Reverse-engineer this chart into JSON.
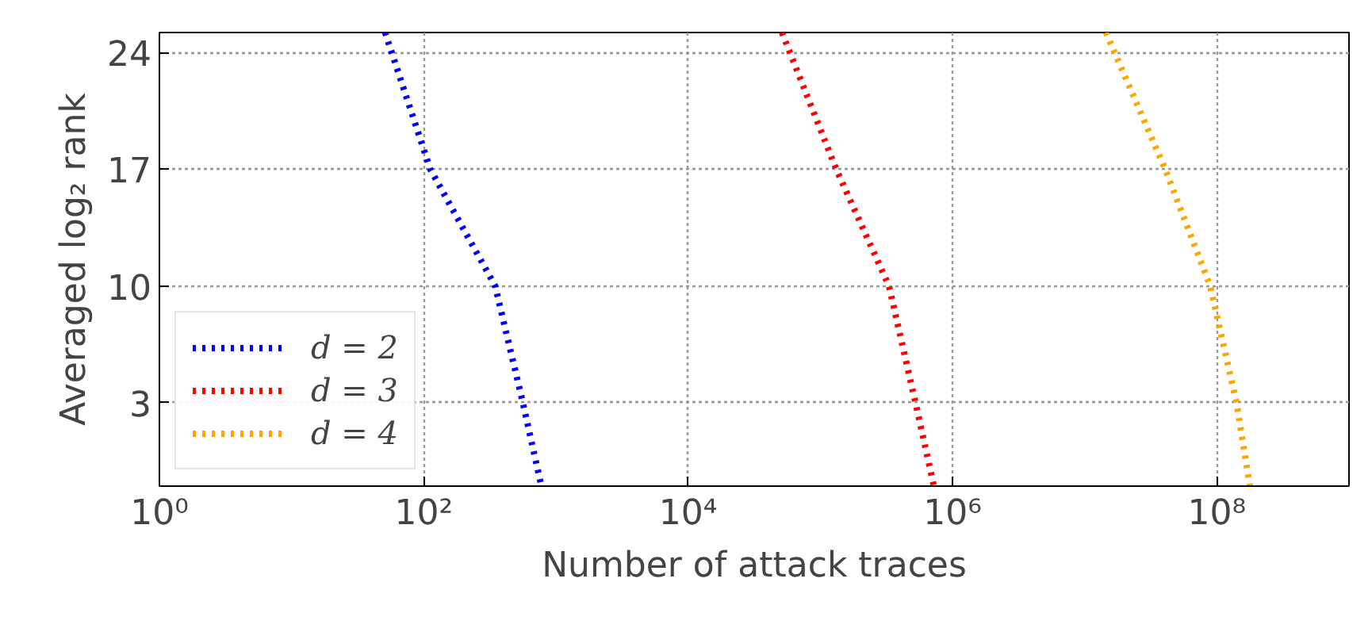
{
  "chart_data": {
    "type": "line",
    "xlabel": "Number of attack traces",
    "ylabel": "Averaged log₂ rank",
    "log": "x",
    "xlim": [
      1,
      1000000000
    ],
    "ylim": [
      -2,
      25.2
    ],
    "xticks": [
      {
        "value": 1,
        "label": "10⁰"
      },
      {
        "value": 100,
        "label": "10²"
      },
      {
        "value": 10000,
        "label": "10⁴"
      },
      {
        "value": 1000000,
        "label": "10⁶"
      },
      {
        "value": 100000000,
        "label": "10⁸"
      }
    ],
    "yticks": [
      3,
      10,
      17,
      24
    ],
    "grid": true,
    "legend": "bottom left",
    "marker": "none",
    "line_style": "dotted",
    "series": [
      {
        "name": "d = 2",
        "color": "#0000ff",
        "x": [
          51,
          112,
          347,
          562,
          776
        ],
        "values": [
          25.2,
          17,
          10,
          3,
          -2
        ]
      },
      {
        "name": "d = 3",
        "color": "#ff0000",
        "x": [
          51300,
          132000,
          331000,
          525000,
          724000
        ],
        "values": [
          25.2,
          17,
          10,
          3,
          -2
        ]
      },
      {
        "name": "d = 4",
        "color": "#ffa500",
        "x": [
          14500000,
          40700000,
          89100000,
          141000000,
          178000000
        ],
        "values": [
          25.2,
          17,
          10,
          3,
          -2
        ]
      }
    ]
  }
}
